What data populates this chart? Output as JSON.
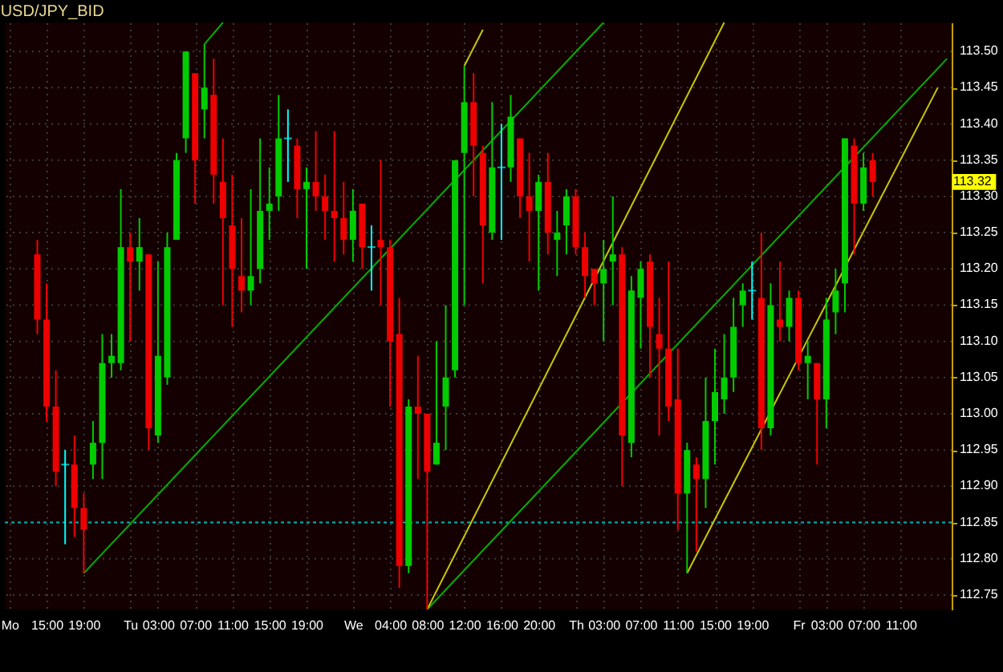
{
  "chart_data": {
    "type": "candlestick",
    "title": "USD/JPY_BID",
    "categories": [
      "Mo",
      null,
      null,
      null,
      "15:00",
      null,
      null,
      null,
      "19:00",
      null,
      null,
      null,
      null,
      "Tu",
      null,
      null,
      "03:00",
      null,
      null,
      null,
      "07:00",
      null,
      null,
      null,
      "11:00",
      null,
      null,
      null,
      "15:00",
      null,
      null,
      null,
      "19:00",
      null,
      null,
      null,
      null,
      "We",
      null,
      null,
      null,
      "04:00",
      null,
      null,
      null,
      "08:00",
      null,
      null,
      null,
      "12:00",
      null,
      null,
      null,
      "16:00",
      null,
      null,
      null,
      "20:00",
      null,
      null,
      null,
      "Th",
      null,
      null,
      "03:00",
      null,
      null,
      null,
      "07:00",
      null,
      null,
      null,
      "11:00",
      null,
      null,
      null,
      "15:00",
      null,
      null,
      null,
      "19:00",
      null,
      null,
      null,
      null,
      "Fr",
      null,
      null,
      "03:00",
      null,
      null,
      null,
      "07:00",
      null,
      null,
      null,
      "11:00",
      null,
      null,
      null,
      null,
      null
    ],
    "ohlc": [
      null,
      null,
      null,
      [
        113.22,
        113.24,
        113.11,
        113.13
      ],
      [
        113.13,
        113.18,
        112.99,
        113.01
      ],
      [
        113.01,
        113.06,
        112.9,
        112.92
      ],
      [
        112.93,
        112.95,
        112.82,
        112.93
      ],
      [
        112.93,
        112.97,
        112.83,
        112.87
      ],
      [
        112.87,
        112.89,
        112.78,
        112.84
      ],
      [
        112.93,
        112.99,
        112.91,
        112.96
      ],
      [
        112.96,
        113.11,
        112.91,
        113.07
      ],
      [
        113.07,
        113.11,
        113.05,
        113.08
      ],
      [
        113.07,
        113.31,
        113.06,
        113.23
      ],
      [
        113.23,
        113.25,
        113.1,
        113.21
      ],
      [
        113.21,
        113.27,
        113.17,
        113.23
      ],
      [
        113.22,
        113.22,
        112.95,
        112.98
      ],
      [
        112.97,
        113.21,
        112.96,
        113.08
      ],
      [
        113.05,
        113.25,
        113.04,
        113.23
      ],
      [
        113.24,
        113.36,
        113.24,
        113.35
      ],
      [
        113.38,
        113.5,
        113.36,
        113.5
      ],
      [
        113.47,
        113.47,
        113.29,
        113.35
      ],
      [
        113.42,
        113.51,
        113.38,
        113.45
      ],
      [
        113.44,
        113.49,
        113.29,
        113.33
      ],
      [
        113.32,
        113.38,
        113.15,
        113.27
      ],
      [
        113.26,
        113.33,
        113.12,
        113.2
      ],
      [
        113.19,
        113.27,
        113.14,
        113.17
      ],
      [
        113.17,
        113.31,
        113.15,
        113.19
      ],
      [
        113.2,
        113.38,
        113.18,
        113.28
      ],
      [
        113.28,
        113.34,
        113.24,
        113.29
      ],
      [
        113.3,
        113.44,
        113.28,
        113.38
      ],
      [
        113.38,
        113.42,
        113.32,
        113.38
      ],
      [
        113.37,
        113.38,
        113.27,
        113.31
      ],
      [
        113.31,
        113.34,
        113.2,
        113.32
      ],
      [
        113.32,
        113.39,
        113.28,
        113.3
      ],
      [
        113.3,
        113.33,
        113.24,
        113.28
      ],
      [
        113.28,
        113.39,
        113.21,
        113.27
      ],
      [
        113.27,
        113.32,
        113.22,
        113.24
      ],
      [
        113.24,
        113.31,
        113.21,
        113.28
      ],
      [
        113.29,
        113.29,
        113.2,
        113.23
      ],
      [
        113.23,
        113.26,
        113.17,
        113.23
      ],
      [
        113.24,
        113.35,
        113.15,
        113.23
      ],
      [
        113.23,
        113.24,
        113.01,
        113.1
      ],
      [
        113.11,
        113.16,
        112.76,
        112.79
      ],
      [
        112.79,
        113.02,
        112.78,
        113.01
      ],
      [
        113.01,
        113.08,
        112.91,
        113.0
      ],
      [
        113.0,
        113.0,
        112.73,
        112.92
      ],
      [
        112.93,
        113.1,
        112.93,
        112.96
      ],
      [
        113.01,
        113.15,
        112.95,
        113.05
      ],
      [
        113.06,
        113.35,
        113.05,
        113.35
      ],
      [
        113.36,
        113.48,
        113.15,
        113.43
      ],
      [
        113.43,
        113.47,
        113.3,
        113.37
      ],
      [
        113.36,
        113.37,
        113.18,
        113.26
      ],
      [
        113.25,
        113.43,
        113.24,
        113.34
      ],
      [
        113.34,
        113.4,
        113.24,
        113.34
      ],
      [
        113.34,
        113.44,
        113.32,
        113.41
      ],
      [
        113.38,
        113.38,
        113.27,
        113.3
      ],
      [
        113.3,
        113.36,
        113.21,
        113.28
      ],
      [
        113.28,
        113.33,
        113.17,
        113.32
      ],
      [
        113.32,
        113.36,
        113.22,
        113.25
      ],
      [
        113.24,
        113.28,
        113.19,
        113.25
      ],
      [
        113.26,
        113.31,
        113.22,
        113.3
      ],
      [
        113.3,
        113.31,
        113.22,
        113.23
      ],
      [
        113.23,
        113.25,
        113.16,
        113.19
      ],
      [
        113.2,
        113.2,
        113.15,
        113.18
      ],
      [
        113.18,
        113.24,
        113.1,
        113.2
      ],
      [
        113.21,
        113.3,
        113.15,
        113.22
      ],
      [
        113.22,
        113.23,
        112.9,
        112.97
      ],
      [
        112.96,
        113.19,
        112.94,
        113.17
      ],
      [
        113.16,
        113.21,
        113.09,
        113.2
      ],
      [
        113.21,
        113.22,
        113.05,
        113.12
      ],
      [
        113.11,
        113.16,
        112.97,
        113.09
      ],
      [
        113.09,
        113.21,
        112.99,
        113.01
      ],
      [
        113.02,
        113.09,
        112.84,
        112.89
      ],
      [
        112.89,
        112.96,
        112.78,
        112.95
      ],
      [
        112.93,
        112.94,
        112.81,
        112.91
      ],
      [
        112.91,
        113.05,
        112.87,
        112.99
      ],
      [
        112.99,
        113.09,
        112.93,
        113.03
      ],
      [
        113.02,
        113.11,
        113.0,
        113.05
      ],
      [
        113.05,
        113.16,
        113.03,
        113.12
      ],
      [
        113.15,
        113.18,
        113.12,
        113.17
      ],
      [
        113.17,
        113.21,
        113.13,
        113.17
      ],
      [
        113.16,
        113.25,
        112.95,
        112.98
      ],
      [
        112.98,
        113.18,
        112.97,
        113.15
      ],
      [
        113.13,
        113.21,
        113.1,
        113.12
      ],
      [
        113.12,
        113.17,
        113.1,
        113.16
      ],
      [
        113.16,
        113.17,
        113.06,
        113.07
      ],
      [
        113.07,
        113.1,
        113.02,
        113.08
      ],
      [
        113.07,
        113.07,
        112.93,
        113.02
      ],
      [
        113.02,
        113.16,
        112.98,
        113.13
      ],
      [
        113.14,
        113.2,
        113.11,
        113.17
      ],
      [
        113.18,
        113.38,
        113.14,
        113.38
      ],
      [
        113.37,
        113.38,
        113.22,
        113.29
      ],
      [
        113.29,
        113.36,
        113.28,
        113.34
      ],
      [
        113.35,
        113.36,
        113.3,
        113.32
      ],
      null,
      null,
      null,
      null,
      null,
      null,
      null,
      null
    ],
    "colors": [
      null,
      null,
      null,
      "#ee0000",
      "#ee0000",
      "#ee0000",
      "#00ffff",
      "#ee0000",
      "#ee0000",
      "#00cc00",
      "#00cc00",
      "#00cc00",
      "#00cc00",
      "#ee0000",
      "#00cc00",
      "#ee0000",
      "#00cc00",
      "#00cc00",
      "#00cc00",
      "#00cc00",
      "#ee0000",
      "#00cc00",
      "#ee0000",
      "#ee0000",
      "#ee0000",
      "#ee0000",
      "#00cc00",
      "#00cc00",
      "#00cc00",
      "#00cc00",
      "#00ffff",
      "#ee0000",
      "#00cc00",
      "#ee0000",
      "#ee0000",
      "#ee0000",
      "#ee0000",
      "#00cc00",
      "#ee0000",
      "#00ffff",
      "#ee0000",
      "#ee0000",
      "#ee0000",
      "#00cc00",
      "#ee0000",
      "#ee0000",
      "#00cc00",
      "#00cc00",
      "#00cc00",
      "#00cc00",
      "#ee0000",
      "#ee0000",
      "#00cc00",
      "#00ffff",
      "#00cc00",
      "#ee0000",
      "#ee0000",
      "#00cc00",
      "#ee0000",
      "#00cc00",
      "#00cc00",
      "#ee0000",
      "#ee0000",
      "#ee0000",
      "#00cc00",
      "#00cc00",
      "#ee0000",
      "#00cc00",
      "#00cc00",
      "#ee0000",
      "#ee0000",
      "#ee0000",
      "#ee0000",
      "#00cc00",
      "#ee0000",
      "#00cc00",
      "#00cc00",
      "#00cc00",
      "#00cc00",
      "#00cc00",
      "#00ffff",
      "#ee0000",
      "#00cc00",
      "#ee0000",
      "#00cc00",
      "#ee0000",
      "#00cc00",
      "#ee0000",
      "#00cc00",
      "#00cc00",
      "#00cc00",
      "#ee0000",
      "#00cc00",
      "#ee0000",
      null,
      null,
      null,
      null,
      null,
      null,
      null,
      null
    ],
    "series": [
      {
        "type": "line",
        "color": "#00b000",
        "values": [
          null,
          null,
          null,
          null,
          null,
          null,
          null,
          null,
          112.78,
          null,
          null,
          null,
          null,
          null,
          null,
          null,
          null,
          null,
          null,
          null,
          null,
          null,
          null,
          null,
          null,
          null,
          null,
          null,
          null,
          null,
          null,
          null,
          null,
          null,
          null,
          null,
          null,
          null,
          null,
          null,
          null,
          null,
          null,
          null,
          null,
          null,
          null,
          null,
          null,
          null,
          null,
          null,
          null,
          null,
          null,
          null,
          null,
          null,
          null,
          null,
          null,
          null,
          null,
          null,
          113.54,
          null,
          null,
          null,
          null,
          null,
          null,
          null,
          null,
          null,
          null,
          null,
          null,
          null,
          null,
          null,
          null,
          null,
          null,
          null,
          null,
          null,
          null,
          null,
          null,
          null,
          null,
          null,
          null,
          null,
          null,
          null,
          null,
          null,
          null,
          null,
          null,
          null
        ]
      },
      {
        "type": "line",
        "color": "#00b000",
        "values": [
          null,
          null,
          null,
          null,
          null,
          null,
          null,
          null,
          null,
          null,
          null,
          null,
          null,
          null,
          null,
          null,
          null,
          null,
          null,
          null,
          null,
          113.51,
          null,
          113.54,
          null,
          null,
          null,
          null,
          null,
          null,
          null,
          null,
          null,
          null,
          null,
          null,
          null,
          null,
          null,
          null,
          null,
          null,
          null,
          null,
          null,
          null,
          null,
          null,
          null,
          null,
          null,
          null,
          null,
          null,
          null,
          null,
          null,
          null,
          null,
          null,
          null,
          null,
          null,
          null,
          null,
          null,
          null,
          null,
          null,
          null,
          null,
          null,
          null,
          null,
          null,
          null,
          null,
          null,
          null,
          null,
          null,
          null,
          null,
          null,
          null,
          null,
          null,
          null,
          null,
          null,
          null,
          null,
          null,
          null,
          null,
          null,
          null,
          null,
          null,
          null,
          null,
          null
        ]
      },
      {
        "type": "line",
        "color": "#00b000",
        "values": [
          null,
          null,
          null,
          null,
          null,
          null,
          null,
          null,
          null,
          null,
          null,
          null,
          null,
          null,
          null,
          null,
          null,
          null,
          null,
          null,
          null,
          null,
          null,
          null,
          null,
          null,
          null,
          null,
          null,
          null,
          null,
          null,
          null,
          null,
          null,
          null,
          null,
          null,
          null,
          null,
          null,
          null,
          null,
          null,
          null,
          112.73,
          null,
          null,
          null,
          null,
          null,
          null,
          null,
          null,
          null,
          null,
          null,
          null,
          null,
          null,
          null,
          null,
          null,
          null,
          null,
          null,
          null,
          null,
          null,
          null,
          null,
          null,
          null,
          null,
          null,
          null,
          null,
          null,
          null,
          null,
          null,
          null,
          null,
          null,
          null,
          null,
          null,
          null,
          null,
          null,
          null,
          null,
          null,
          null,
          null,
          null,
          null,
          null,
          null,
          null,
          null,
          113.49
        ]
      },
      {
        "type": "line",
        "color": "#c8c800",
        "values": [
          null,
          null,
          null,
          null,
          null,
          null,
          null,
          null,
          null,
          null,
          null,
          null,
          null,
          null,
          null,
          null,
          null,
          null,
          null,
          null,
          null,
          null,
          null,
          null,
          null,
          null,
          null,
          null,
          null,
          null,
          null,
          null,
          null,
          null,
          null,
          null,
          null,
          null,
          null,
          null,
          null,
          null,
          null,
          null,
          null,
          112.73,
          null,
          null,
          null,
          null,
          null,
          null,
          null,
          null,
          null,
          null,
          null,
          null,
          null,
          null,
          null,
          null,
          null,
          null,
          null,
          null,
          null,
          null,
          null,
          null,
          null,
          null,
          null,
          null,
          null,
          null,
          null,
          113.54,
          null,
          null,
          null,
          null,
          null,
          null,
          null,
          null,
          null,
          null,
          null,
          null,
          null,
          null,
          null,
          null,
          null,
          null,
          null,
          null,
          null,
          null,
          null,
          null
        ]
      },
      {
        "type": "line",
        "color": "#c8c800",
        "values": [
          null,
          null,
          null,
          null,
          null,
          null,
          null,
          null,
          null,
          null,
          null,
          null,
          null,
          null,
          null,
          null,
          null,
          null,
          null,
          null,
          null,
          null,
          null,
          null,
          null,
          null,
          null,
          null,
          null,
          null,
          null,
          null,
          null,
          null,
          null,
          null,
          null,
          null,
          null,
          null,
          null,
          null,
          null,
          null,
          null,
          null,
          null,
          null,
          null,
          113.48,
          null,
          113.53,
          null,
          null,
          null,
          null,
          null,
          null,
          null,
          null,
          null,
          null,
          null,
          null,
          null,
          null,
          null,
          null,
          null,
          null,
          null,
          null,
          null,
          null,
          null,
          null,
          null,
          null,
          null,
          null,
          null,
          null,
          null,
          null,
          null,
          null,
          null,
          null,
          null,
          null,
          null,
          null,
          null,
          null,
          null,
          null,
          null,
          null,
          null,
          null,
          null,
          null
        ]
      },
      {
        "type": "line",
        "color": "#c8c800",
        "values": [
          null,
          null,
          null,
          null,
          null,
          null,
          null,
          null,
          null,
          null,
          null,
          null,
          null,
          null,
          null,
          null,
          null,
          null,
          null,
          null,
          null,
          null,
          null,
          null,
          null,
          null,
          null,
          null,
          null,
          null,
          null,
          null,
          null,
          null,
          null,
          null,
          null,
          null,
          null,
          null,
          null,
          null,
          null,
          null,
          null,
          null,
          null,
          null,
          null,
          null,
          null,
          null,
          null,
          null,
          null,
          null,
          null,
          null,
          null,
          null,
          null,
          null,
          null,
          null,
          null,
          null,
          null,
          null,
          null,
          null,
          null,
          null,
          null,
          112.78,
          null,
          null,
          null,
          null,
          null,
          null,
          null,
          null,
          null,
          null,
          null,
          null,
          null,
          null,
          null,
          null,
          null,
          null,
          null,
          null,
          null,
          null,
          null,
          null,
          null,
          null,
          113.45,
          null
        ]
      }
    ],
    "ref_lines": [
      {
        "axis": "y",
        "value": 112.85,
        "color": "#00b0b0",
        "line_style": "dotted"
      }
    ],
    "annotations": [
      {
        "text": "113.32",
        "y": 113.32
      }
    ],
    "ylim": [
      112.73,
      113.54
    ],
    "yticks": [
      {
        "value": 112.75,
        "label": "112.75"
      },
      {
        "value": 112.8,
        "label": "112.80"
      },
      {
        "value": 112.85,
        "label": "112.85"
      },
      {
        "value": 112.9,
        "label": "112.90"
      },
      {
        "value": 112.95,
        "label": "112.95"
      },
      {
        "value": 113.0,
        "label": "113.00"
      },
      {
        "value": 113.05,
        "label": "113.05"
      },
      {
        "value": 113.1,
        "label": "113.10"
      },
      {
        "value": 113.15,
        "label": "113.15"
      },
      {
        "value": 113.2,
        "label": "113.20"
      },
      {
        "value": 113.25,
        "label": "113.25"
      },
      {
        "value": 113.3,
        "label": "113.30"
      },
      {
        "value": 113.35,
        "label": "113.35"
      },
      {
        "value": 113.4,
        "label": "113.40"
      },
      {
        "value": 113.45,
        "label": "113.45"
      },
      {
        "value": 113.5,
        "label": "113.50"
      }
    ],
    "grid": true
  }
}
